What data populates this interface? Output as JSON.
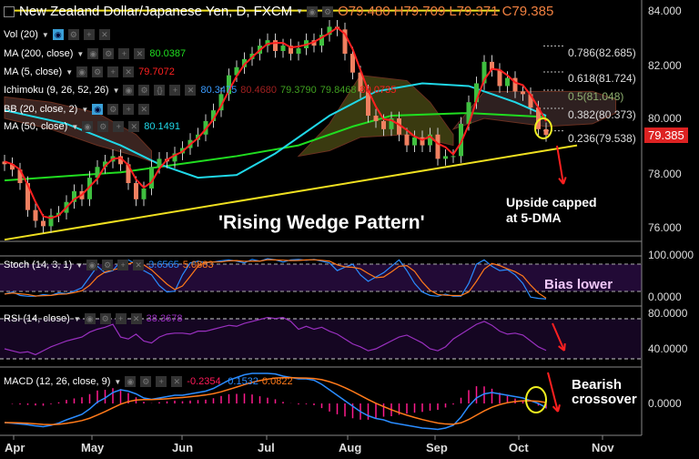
{
  "header": {
    "title": "New Zealand Dollar/Japanese Yen, D, FXCM",
    "open": "O79.480",
    "high": "H79.709",
    "low": "L79.371",
    "close": "C79.385"
  },
  "legends": {
    "vol": {
      "label": "Vol (20)"
    },
    "ma200": {
      "label": "MA (200, close)",
      "value": "80.0387"
    },
    "ma5": {
      "label": "MA (5, close)",
      "value": "79.7072"
    },
    "ichimoku": {
      "label": "Ichimoku (9, 26, 52, 26)",
      "v1": "80.3475",
      "v2": "80.4680",
      "v3": "79.3790",
      "v4": "79.8468",
      "v5": "80.0735"
    },
    "bb": {
      "label": "BB (20, close, 2)"
    },
    "ma50": {
      "label": "MA (50, close)",
      "value": "80.1491"
    },
    "stoch": {
      "label": "Stoch (14, 3, 1)",
      "k": "3.6565",
      "d": "5.0883"
    },
    "rsi": {
      "label": "RSI (14, close)",
      "value": "38.3678"
    },
    "macd": {
      "label": "MACD (12, 26, close, 9)",
      "hist": "-0.2354",
      "macd": "-0.1532",
      "signal": "0.0822"
    }
  },
  "annotations": {
    "wedge": "'Rising Wedge Pattern'",
    "capped1": "Upside capped",
    "capped2": "at 5-DMA",
    "bias": "Bias lower",
    "bearish1": "Bearish",
    "bearish2": "crossover"
  },
  "fib_levels": [
    {
      "label": "0.786(82.685)",
      "value": 82.685
    },
    {
      "label": "0.618(81.724)",
      "value": 81.724
    },
    {
      "label": "0.5(81.048)",
      "value": 81.048
    },
    {
      "label": "0.382(80.373)",
      "value": 80.373
    },
    {
      "label": "0.236(79.538)",
      "value": 79.538
    }
  ],
  "price_axis": [
    "84.000",
    "82.000",
    "80.000",
    "78.000",
    "76.000"
  ],
  "current_price": "79.385",
  "stoch_axis": [
    "100.0000",
    "0.0000"
  ],
  "rsi_axis": [
    "80.0000",
    "40.0000"
  ],
  "macd_axis": [
    "0.0000"
  ],
  "time_axis": [
    "Apr",
    "May",
    "Jun",
    "Jul",
    "Aug",
    "Sep",
    "Oct",
    "Nov"
  ],
  "colors": {
    "up": "#3fbf3f",
    "down": "#f08060",
    "ma5": "#ff2020",
    "ma50": "#20d8e8",
    "ma200": "#20dd20",
    "wedge": "#f0e020",
    "stochK": "#2a8cff",
    "stochD": "#ff7a1a",
    "rsi": "#9a30c0",
    "hist": "#ff1a8c"
  },
  "chart_data": {
    "type": "candlestick",
    "title": "New Zealand Dollar/Japanese Yen, D, FXCM",
    "ylim": [
      75.5,
      84.5
    ],
    "close": [
      78.3,
      78.1,
      77.6,
      76.6,
      76.2,
      76.0,
      76.4,
      76.5,
      76.9,
      77.3,
      77.0,
      77.8,
      78.2,
      78.4,
      78.6,
      78.3,
      77.6,
      77.0,
      77.4,
      78.2,
      78.5,
      78.4,
      78.7,
      78.9,
      79.2,
      79.4,
      79.9,
      80.3,
      80.9,
      81.6,
      81.9,
      82.2,
      82.4,
      82.7,
      82.9,
      82.5,
      82.7,
      82.4,
      82.6,
      82.9,
      82.7,
      83.1,
      83.4,
      83.3,
      82.4,
      81.7,
      81.0,
      80.1,
      79.9,
      79.6,
      80.0,
      79.4,
      79.0,
      79.3,
      79.0,
      79.4,
      78.5,
      78.6,
      78.6,
      79.8,
      80.6,
      81.3,
      82.1,
      81.8,
      81.2,
      81.5,
      81.0,
      80.9,
      80.4,
      79.6,
      79.385
    ],
    "ma50": [
      [
        0,
        80.3
      ],
      [
        8,
        79.8
      ],
      [
        15,
        79.0
      ],
      [
        20,
        78.3
      ],
      [
        25,
        77.8
      ],
      [
        30,
        77.9
      ],
      [
        35,
        78.7
      ],
      [
        42,
        80.1
      ],
      [
        48,
        81.0
      ],
      [
        54,
        81.3
      ],
      [
        60,
        81.2
      ],
      [
        66,
        80.6
      ],
      [
        70,
        80.1
      ]
    ],
    "ma200": [
      [
        0,
        77.7
      ],
      [
        15,
        78.0
      ],
      [
        30,
        78.6
      ],
      [
        38,
        79.0
      ],
      [
        45,
        79.7
      ],
      [
        50,
        80.1
      ],
      [
        60,
        80.2
      ],
      [
        70,
        80.05
      ]
    ],
    "cloud": [
      {
        "color": "#3a2420",
        "points": [
          [
            0,
            80.8,
            80.0
          ],
          [
            6,
            80.6,
            79.6
          ],
          [
            12,
            80.2,
            79.0
          ],
          [
            17,
            79.4,
            78.6
          ],
          [
            19,
            78.8,
            78.4
          ]
        ]
      },
      {
        "color": "#3a3a10",
        "points": [
          [
            38,
            78.6,
            78.6
          ],
          [
            42,
            79.8,
            78.8
          ],
          [
            46,
            81.6,
            79.3
          ],
          [
            52,
            81.4,
            79.4
          ],
          [
            55,
            80.6,
            79.2
          ],
          [
            58,
            79.4,
            79.0
          ]
        ]
      },
      {
        "color": "#2e2020",
        "points": [
          [
            58,
            79.6,
            79.6
          ],
          [
            62,
            81.0,
            80.0
          ],
          [
            70,
            81.0,
            79.7
          ],
          [
            76,
            81.0,
            79.8
          ],
          [
            79,
            80.7,
            80.2
          ]
        ]
      }
    ],
    "wedge_lower": [
      [
        0,
        75.5
      ],
      [
        74,
        79.0
      ]
    ],
    "wedge_upper": [
      [
        0,
        84.0
      ],
      [
        64,
        84.0
      ]
    ],
    "stoch_k": [
      15,
      20,
      12,
      10,
      10,
      14,
      12,
      18,
      16,
      22,
      30,
      55,
      80,
      65,
      70,
      92,
      95,
      85,
      70,
      60,
      35,
      20,
      22,
      60,
      88,
      92,
      88,
      90,
      93,
      95,
      92,
      88,
      96,
      92,
      98,
      95,
      90,
      95,
      96,
      94,
      96,
      92,
      88,
      70,
      78,
      85,
      60,
      45,
      55,
      65,
      80,
      95,
      70,
      40,
      20,
      12,
      10,
      15,
      10,
      10,
      40,
      85,
      95,
      80,
      70,
      72,
      60,
      40,
      8,
      5,
      3.66
    ],
    "rsi": [
      40,
      38,
      36,
      37,
      34,
      38,
      42,
      45,
      48,
      50,
      52,
      57,
      60,
      62,
      65,
      52,
      50,
      55,
      48,
      46,
      52,
      55,
      56,
      56,
      55,
      58,
      58,
      60,
      62,
      64,
      63,
      66,
      68,
      70,
      72,
      71,
      72,
      68,
      60,
      63,
      60,
      62,
      58,
      55,
      50,
      45,
      42,
      38,
      40,
      44,
      48,
      52,
      54,
      50,
      46,
      40,
      38,
      42,
      50,
      55,
      60,
      65,
      68,
      64,
      58,
      55,
      56,
      54,
      48,
      42,
      38.37
    ],
    "macd": [
      -0.7,
      -0.72,
      -0.75,
      -0.78,
      -0.82,
      -0.85,
      -0.8,
      -0.72,
      -0.6,
      -0.5,
      -0.4,
      -0.2,
      0.05,
      0.2,
      0.4,
      0.5,
      0.45,
      0.35,
      0.2,
      0.15,
      0.2,
      0.25,
      0.3,
      0.3,
      0.35,
      0.4,
      0.45,
      0.55,
      0.7,
      0.85,
      0.95,
      1.05,
      1.1,
      1.1,
      1.1,
      1.08,
      1.0,
      0.95,
      0.9,
      0.9,
      0.85,
      0.7,
      0.5,
      0.3,
      0.1,
      -0.1,
      -0.3,
      -0.45,
      -0.55,
      -0.6,
      -0.7,
      -0.75,
      -0.8,
      -0.85,
      -0.9,
      -0.92,
      -0.95,
      -0.9,
      -0.8,
      -0.5,
      -0.1,
      0.2,
      0.35,
      0.4,
      0.35,
      0.3,
      0.25,
      0.2,
      0.1,
      0.0,
      -0.1532
    ]
  }
}
